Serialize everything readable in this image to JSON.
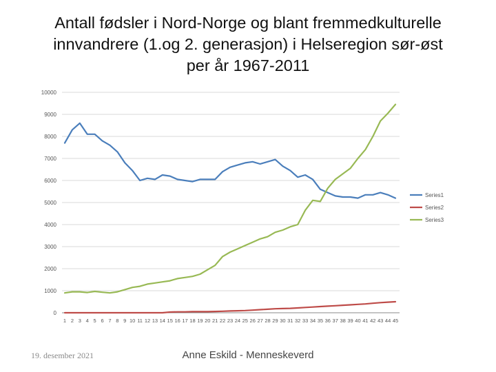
{
  "title_lines": [
    "Antall fødsler i Nord-Norge og blant fremmedkulturelle",
    "innvandrere (1.og 2. generasjon) i Helseregion sør-øst",
    "per år 1967-2011"
  ],
  "footer": {
    "date": "19. desember 2021",
    "author": "Anne Eskild - Menneskeverd"
  },
  "chart_data": {
    "type": "line",
    "title": "",
    "xlabel": "",
    "ylabel": "",
    "x": [
      1,
      2,
      3,
      4,
      5,
      6,
      7,
      8,
      9,
      10,
      11,
      12,
      13,
      14,
      15,
      16,
      17,
      18,
      19,
      20,
      21,
      22,
      23,
      24,
      25,
      26,
      27,
      28,
      29,
      30,
      31,
      32,
      33,
      34,
      35,
      36,
      37,
      38,
      39,
      40,
      41,
      42,
      43,
      44,
      45
    ],
    "ylim": [
      0,
      10000
    ],
    "yticks": [
      0,
      1000,
      2000,
      3000,
      4000,
      5000,
      6000,
      7000,
      8000,
      9000,
      10000
    ],
    "grid": true,
    "legend_position": "right",
    "series": [
      {
        "name": "Series1",
        "color": "#4a7ebb",
        "values": [
          7700,
          8300,
          8600,
          8100,
          8100,
          7800,
          7600,
          7300,
          6800,
          6450,
          6000,
          6100,
          6050,
          6250,
          6200,
          6050,
          6000,
          5950,
          6050,
          6050,
          6050,
          6400,
          6600,
          6700,
          6800,
          6850,
          6750,
          6850,
          6950,
          6650,
          6450,
          6150,
          6250,
          6050,
          5600,
          5450,
          5300,
          5250,
          5250,
          5200,
          5350,
          5350,
          5450,
          5350,
          5200
        ]
      },
      {
        "name": "Series2",
        "color": "#be4b48",
        "values": [
          0,
          0,
          0,
          0,
          0,
          0,
          0,
          0,
          0,
          0,
          0,
          0,
          0,
          0,
          30,
          40,
          40,
          50,
          50,
          50,
          60,
          70,
          80,
          90,
          100,
          120,
          140,
          160,
          180,
          190,
          200,
          220,
          240,
          260,
          280,
          300,
          320,
          340,
          360,
          380,
          400,
          430,
          460,
          480,
          500
        ]
      },
      {
        "name": "Series3",
        "color": "#98b954",
        "values": [
          900,
          950,
          950,
          920,
          970,
          930,
          900,
          950,
          1050,
          1150,
          1200,
          1300,
          1350,
          1400,
          1450,
          1550,
          1600,
          1650,
          1750,
          1950,
          2150,
          2550,
          2750,
          2900,
          3050,
          3200,
          3350,
          3450,
          3650,
          3750,
          3900,
          4000,
          4650,
          5100,
          5050,
          5650,
          6050,
          6300,
          6550,
          7000,
          7400,
          8000,
          8700,
          9050,
          9450
        ]
      }
    ]
  }
}
